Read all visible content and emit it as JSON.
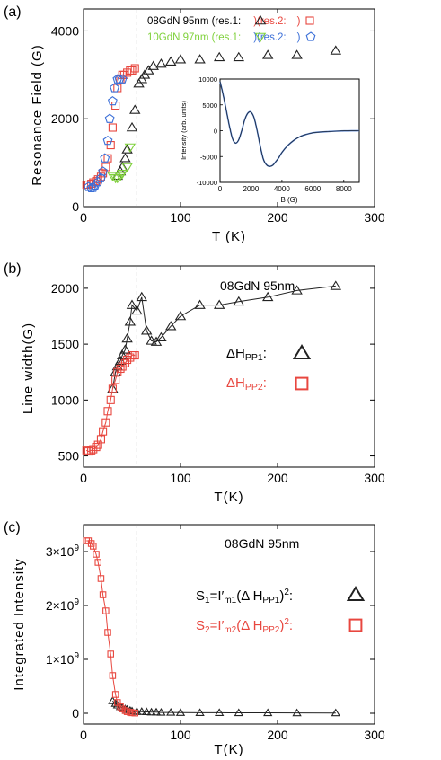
{
  "figure": {
    "marker_color_black": "#222222",
    "marker_color_red": "#e8473f",
    "marker_color_green": "#7fd13b",
    "marker_color_blue": "#3b6fd8",
    "vline_color": "#999999"
  },
  "chart_data": [
    {
      "type": "scatter",
      "panel_label": "(a)",
      "ylabel": "Resonance Field (G)",
      "xlabel": "T (K)",
      "xlim": [
        0,
        300
      ],
      "ylim": [
        0,
        4500
      ],
      "xticks": [
        "0",
        "100",
        "200",
        "300"
      ],
      "yticks": [
        "0",
        "2000",
        "4000"
      ],
      "xtick_values": [
        0,
        100,
        200,
        300
      ],
      "ytick_values": [
        0,
        2000,
        4000
      ],
      "vline_x": 55,
      "legend_line1": {
        "prefix": "08GdN  95nm  (res.1:",
        "mid": ")(res.2:",
        "suffix": ")"
      },
      "legend_line2": {
        "prefix": "10GdN  97nm  (res.1:",
        "mid": ")(res.2:",
        "suffix": ")"
      },
      "series": [
        {
          "name": "08GdN 95nm res.1",
          "marker": "triangle",
          "color": "#222222",
          "x": [
            35,
            38,
            40,
            43,
            45,
            50,
            53,
            57,
            60,
            63,
            67,
            72,
            80,
            90,
            100,
            120,
            140,
            160,
            190,
            220,
            260
          ],
          "y": [
            700,
            800,
            900,
            1100,
            1300,
            1800,
            2200,
            2800,
            2900,
            3000,
            3100,
            3200,
            3250,
            3300,
            3350,
            3350,
            3400,
            3400,
            3450,
            3450,
            3550
          ]
        },
        {
          "name": "08GdN 95nm res.2",
          "marker": "square",
          "color": "#e8473f",
          "x": [
            3,
            5,
            8,
            10,
            13,
            15,
            18,
            20,
            23,
            25,
            28,
            30,
            33,
            35,
            38,
            40,
            42,
            45,
            48,
            50,
            53
          ],
          "y": [
            500,
            500,
            520,
            550,
            580,
            620,
            680,
            760,
            900,
            1100,
            1400,
            1800,
            2300,
            2700,
            2900,
            3000,
            3000,
            3050,
            3100,
            3100,
            3150
          ]
        },
        {
          "name": "10GdN 97nm res.1",
          "marker": "triangle-down",
          "color": "#7fd13b",
          "x": [
            30,
            33,
            35,
            38,
            40,
            45,
            48
          ],
          "y": [
            700,
            650,
            650,
            700,
            750,
            900,
            1350
          ]
        },
        {
          "name": "10GdN 97nm res.2",
          "marker": "pentagon",
          "color": "#3b6fd8",
          "x": [
            5,
            8,
            10,
            12,
            15,
            18,
            20,
            22,
            25,
            27,
            30,
            32,
            35,
            37,
            40
          ],
          "y": [
            450,
            420,
            430,
            480,
            560,
            650,
            800,
            1100,
            1500,
            2000,
            2400,
            2700,
            2900,
            2900,
            2900
          ]
        }
      ],
      "inset": {
        "type": "line",
        "xlabel": "B  (G)",
        "ylabel": "Intensity (arb. units)",
        "xlim": [
          0,
          9000
        ],
        "ylim": [
          -10000,
          10000
        ],
        "xticks": [
          "0",
          "2000",
          "4000",
          "6000",
          "8000"
        ],
        "yticks": [
          "-10000",
          "-5000",
          "0",
          "5000",
          "10000"
        ],
        "xtick_values": [
          0,
          2000,
          4000,
          6000,
          8000
        ],
        "ytick_values": [
          -10000,
          -5000,
          0,
          5000,
          10000
        ],
        "x": [
          0,
          200,
          400,
          600,
          800,
          1000,
          1200,
          1400,
          1600,
          1800,
          2000,
          2200,
          2400,
          2600,
          2800,
          3000,
          3200,
          3400,
          3600,
          3800,
          4000,
          4400,
          4800,
          5200,
          5600,
          6000,
          6500,
          7000,
          7500,
          8000,
          8500,
          9000
        ],
        "y": [
          9500,
          7000,
          4000,
          1000,
          -1500,
          -2400,
          -1800,
          0,
          2200,
          3400,
          3600,
          2500,
          0,
          -3000,
          -5500,
          -6600,
          -6900,
          -6700,
          -6000,
          -5200,
          -4200,
          -2800,
          -1800,
          -1100,
          -700,
          -400,
          -250,
          -150,
          -80,
          -40,
          -20,
          0
        ]
      }
    },
    {
      "type": "line",
      "panel_label": "(b)",
      "ylabel": "Line width(G)",
      "xlabel": "T(K)",
      "xlim": [
        0,
        300
      ],
      "ylim": [
        400,
        2200
      ],
      "xticks": [
        "0",
        "100",
        "200",
        "300"
      ],
      "yticks": [
        "500",
        "1000",
        "1500",
        "2000"
      ],
      "xtick_values": [
        0,
        100,
        200,
        300
      ],
      "ytick_values": [
        500,
        1000,
        1500,
        2000
      ],
      "vline_x": 55,
      "sample_label": "08GdN  95nm",
      "legend": [
        {
          "main": "ΔH",
          "sub": "PP1",
          "tail": ":"
        },
        {
          "main": "ΔH",
          "sub": "PP2",
          "tail": ":"
        }
      ],
      "series": [
        {
          "name": "ΔHPP1",
          "marker": "triangle",
          "color": "#222222",
          "x": [
            30,
            33,
            35,
            38,
            40,
            43,
            45,
            48,
            50,
            55,
            60,
            65,
            70,
            75,
            80,
            90,
            100,
            120,
            140,
            160,
            190,
            220,
            260
          ],
          "y": [
            1100,
            1250,
            1300,
            1350,
            1400,
            1450,
            1550,
            1700,
            1850,
            1800,
            1920,
            1620,
            1530,
            1520,
            1560,
            1660,
            1750,
            1850,
            1850,
            1880,
            1920,
            1980,
            2020
          ]
        },
        {
          "name": "ΔHPP2",
          "marker": "square",
          "color": "#e8473f",
          "x": [
            3,
            5,
            8,
            10,
            13,
            15,
            18,
            20,
            23,
            25,
            28,
            30,
            33,
            35,
            38,
            40,
            43,
            45,
            48,
            50,
            53
          ],
          "y": [
            550,
            540,
            550,
            560,
            580,
            600,
            650,
            720,
            800,
            900,
            1000,
            1100,
            1180,
            1250,
            1280,
            1300,
            1330,
            1360,
            1380,
            1400,
            1400
          ]
        }
      ]
    },
    {
      "type": "line",
      "panel_label": "(c)",
      "ylabel": "Integrated Intensity",
      "xlabel": "T(K)",
      "xlim": [
        0,
        300
      ],
      "ylim": [
        -200000000,
        3500000000
      ],
      "xticks": [
        "0",
        "100",
        "200",
        "300"
      ],
      "ytick_values": [
        0,
        1000000000,
        2000000000,
        3000000000
      ],
      "yticks_html": [
        {
          "pre": "0",
          "exp": ""
        },
        {
          "pre": "1×10",
          "exp": "9"
        },
        {
          "pre": "2×10",
          "exp": "9"
        },
        {
          "pre": "3×10",
          "exp": "9"
        }
      ],
      "xtick_values": [
        0,
        100,
        200,
        300
      ],
      "vline_x": 55,
      "sample_label": "08GdN  95nm",
      "legend": [
        {
          "a": "S",
          "as": "1",
          "b": "=I′",
          "bs": "m1",
          "c": "(Δ  H",
          "cs": "PP1",
          "d": ")",
          "sup": "2",
          "e": ":"
        },
        {
          "a": "S",
          "as": "2",
          "b": "=I′",
          "bs": "m2",
          "c": "(Δ  H",
          "cs": "PP2",
          "d": ")",
          "sup": "2",
          "e": ":"
        }
      ],
      "series": [
        {
          "name": "S1",
          "marker": "triangle",
          "color": "#222222",
          "x": [
            30,
            33,
            35,
            38,
            40,
            43,
            45,
            48,
            50,
            55,
            60,
            65,
            70,
            75,
            80,
            90,
            100,
            120,
            140,
            160,
            190,
            220,
            260
          ],
          "y": [
            230000000,
            180000000,
            150000000,
            120000000,
            100000000,
            80000000,
            70000000,
            50000000,
            40000000,
            30000000,
            30000000,
            25000000,
            20000000,
            20000000,
            15000000,
            15000000,
            12000000,
            10000000,
            10000000,
            8000000,
            8000000,
            6000000,
            5000000
          ]
        },
        {
          "name": "S2",
          "marker": "square",
          "color": "#e8473f",
          "x": [
            3,
            5,
            8,
            10,
            13,
            15,
            18,
            20,
            23,
            25,
            28,
            30,
            33,
            35,
            38,
            40,
            43,
            45,
            48,
            50,
            53
          ],
          "y": [
            3200000000,
            3200000000,
            3150000000,
            3100000000,
            2950000000,
            2800000000,
            2500000000,
            2200000000,
            1900000000,
            1500000000,
            1100000000,
            700000000,
            350000000,
            200000000,
            120000000,
            80000000,
            50000000,
            30000000,
            20000000,
            10000000,
            5000000
          ]
        }
      ]
    }
  ]
}
